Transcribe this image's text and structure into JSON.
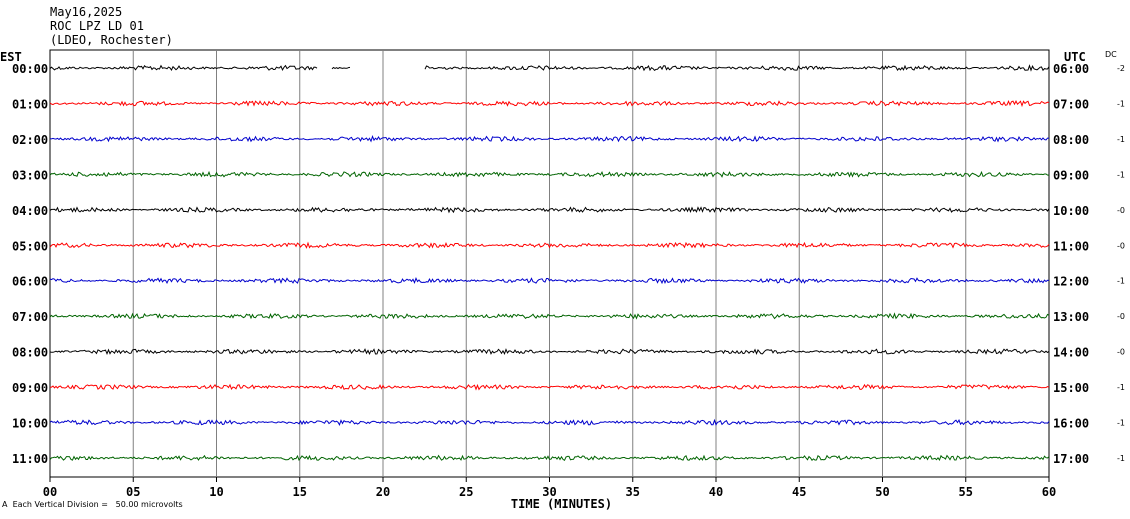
{
  "header": {
    "date": "May16,2025",
    "station": "ROC LPZ LD 01",
    "network": "(LDEO, Rochester)"
  },
  "footer": {
    "scale_note": "Each Vertical Division =   50.00 microvolts",
    "mark": "A"
  },
  "chart_data": {
    "type": "line",
    "title": "",
    "left_axis_label": "EST",
    "right_axis_label": "UTC",
    "right_column_label": "DC",
    "xlabel": "TIME (MINUTES)",
    "xlim": [
      0,
      60
    ],
    "x_ticks": [
      "00",
      "05",
      "10",
      "15",
      "20",
      "25",
      "30",
      "35",
      "40",
      "45",
      "50",
      "55",
      "60"
    ],
    "grid": true,
    "colors": [
      "#000000",
      "#ff0000",
      "#0000cc",
      "#006400"
    ],
    "rows": [
      {
        "est": "00:00",
        "utc": "06:00",
        "dc": "-2",
        "color": "#000000",
        "gaps": [
          [
            16.1,
            16.9
          ],
          [
            18.1,
            22.5
          ]
        ]
      },
      {
        "est": "01:00",
        "utc": "07:00",
        "dc": "-1",
        "color": "#ff0000",
        "gaps": []
      },
      {
        "est": "02:00",
        "utc": "08:00",
        "dc": "-1",
        "color": "#0000cc",
        "gaps": []
      },
      {
        "est": "03:00",
        "utc": "09:00",
        "dc": "-1",
        "color": "#006400",
        "gaps": []
      },
      {
        "est": "04:00",
        "utc": "10:00",
        "dc": "-0",
        "color": "#000000",
        "gaps": []
      },
      {
        "est": "05:00",
        "utc": "11:00",
        "dc": "-0",
        "color": "#ff0000",
        "gaps": []
      },
      {
        "est": "06:00",
        "utc": "12:00",
        "dc": "-1",
        "color": "#0000cc",
        "gaps": []
      },
      {
        "est": "07:00",
        "utc": "13:00",
        "dc": "-0",
        "color": "#006400",
        "gaps": []
      },
      {
        "est": "08:00",
        "utc": "14:00",
        "dc": "-0",
        "color": "#000000",
        "gaps": []
      },
      {
        "est": "09:00",
        "utc": "15:00",
        "dc": "-1",
        "color": "#ff0000",
        "gaps": []
      },
      {
        "est": "10:00",
        "utc": "16:00",
        "dc": "-1",
        "color": "#0000cc",
        "gaps": []
      },
      {
        "est": "11:00",
        "utc": "17:00",
        "dc": "-1",
        "color": "#006400",
        "gaps": []
      }
    ]
  }
}
